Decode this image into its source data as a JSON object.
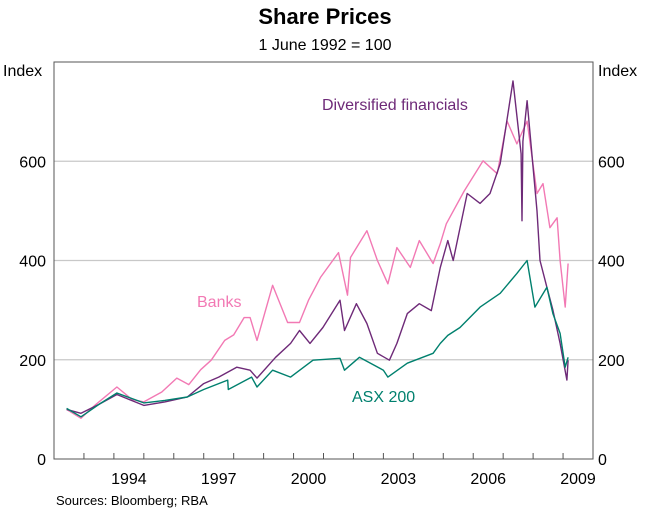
{
  "chart_data": {
    "type": "line",
    "title": "Share Prices",
    "subtitle": "1 June 1992 = 100",
    "ylabel_left": "Index",
    "ylabel_right": "Index",
    "ylim": [
      0,
      800
    ],
    "yticks": [
      0,
      200,
      400,
      600
    ],
    "xlim": [
      1992.0,
      2010.0
    ],
    "xtick_labels": [
      {
        "label": "1994",
        "year": 1994
      },
      {
        "label": "1997",
        "year": 1997
      },
      {
        "label": "2000",
        "year": 2000
      },
      {
        "label": "2003",
        "year": 2003
      },
      {
        "label": "2006",
        "year": 2006
      },
      {
        "label": "2009",
        "year": 2009
      }
    ],
    "grid": true,
    "source": "Sources: Bloomberg; RBA",
    "series": [
      {
        "name": "Banks",
        "color": "#f279b4",
        "points": [
          [
            1992.42,
            100
          ],
          [
            1992.9,
            82
          ],
          [
            1993.4,
            110
          ],
          [
            1994.1,
            145
          ],
          [
            1994.6,
            120
          ],
          [
            1995.0,
            115
          ],
          [
            1995.6,
            135
          ],
          [
            1996.1,
            163
          ],
          [
            1996.5,
            150
          ],
          [
            1996.9,
            180
          ],
          [
            1997.25,
            199
          ],
          [
            1997.7,
            239
          ],
          [
            1998.0,
            250
          ],
          [
            1998.35,
            285
          ],
          [
            1998.55,
            285
          ],
          [
            1998.78,
            239
          ],
          [
            1999.3,
            350
          ],
          [
            1999.8,
            275
          ],
          [
            2000.2,
            275
          ],
          [
            2000.5,
            320
          ],
          [
            2000.9,
            366
          ],
          [
            2001.5,
            416
          ],
          [
            2001.8,
            330
          ],
          [
            2001.9,
            406
          ],
          [
            2002.45,
            460
          ],
          [
            2002.8,
            400
          ],
          [
            2003.15,
            353
          ],
          [
            2003.45,
            426
          ],
          [
            2003.9,
            386
          ],
          [
            2004.2,
            440
          ],
          [
            2004.66,
            394
          ],
          [
            2004.9,
            434
          ],
          [
            2005.1,
            474
          ],
          [
            2005.7,
            540
          ],
          [
            2006.33,
            601
          ],
          [
            2006.8,
            575
          ],
          [
            2007.13,
            681
          ],
          [
            2007.46,
            635
          ],
          [
            2007.8,
            681
          ],
          [
            2008.13,
            535
          ],
          [
            2008.33,
            555
          ],
          [
            2008.56,
            466
          ],
          [
            2008.8,
            486
          ],
          [
            2008.9,
            400
          ],
          [
            2009.07,
            306
          ],
          [
            2009.17,
            394
          ]
        ]
      },
      {
        "name": "Diversified financials",
        "color": "#6e2a78",
        "points": [
          [
            1992.42,
            100
          ],
          [
            1992.9,
            92
          ],
          [
            1993.5,
            110
          ],
          [
            1994.1,
            130
          ],
          [
            1995.0,
            108
          ],
          [
            1995.7,
            115
          ],
          [
            1996.45,
            125
          ],
          [
            1997.0,
            152
          ],
          [
            1997.5,
            165
          ],
          [
            1998.1,
            185
          ],
          [
            1998.55,
            179
          ],
          [
            1998.78,
            163
          ],
          [
            1999.4,
            205
          ],
          [
            1999.9,
            233
          ],
          [
            2000.2,
            259
          ],
          [
            2000.55,
            233
          ],
          [
            2000.98,
            265
          ],
          [
            2001.55,
            320
          ],
          [
            2001.7,
            259
          ],
          [
            2002.1,
            313
          ],
          [
            2002.45,
            273
          ],
          [
            2002.8,
            213
          ],
          [
            2003.2,
            199
          ],
          [
            2003.45,
            233
          ],
          [
            2003.8,
            293
          ],
          [
            2004.2,
            313
          ],
          [
            2004.6,
            299
          ],
          [
            2004.9,
            386
          ],
          [
            2005.15,
            440
          ],
          [
            2005.33,
            400
          ],
          [
            2005.8,
            535
          ],
          [
            2006.23,
            515
          ],
          [
            2006.56,
            535
          ],
          [
            2006.9,
            595
          ],
          [
            2007.33,
            762
          ],
          [
            2007.6,
            615
          ],
          [
            2007.63,
            480
          ],
          [
            2007.66,
            640
          ],
          [
            2007.8,
            722
          ],
          [
            2008.13,
            500
          ],
          [
            2008.23,
            400
          ],
          [
            2008.46,
            346
          ],
          [
            2008.66,
            300
          ],
          [
            2008.9,
            233
          ],
          [
            2009.13,
            159
          ],
          [
            2009.17,
            199
          ]
        ]
      },
      {
        "name": "ASX 200",
        "color": "#00806e",
        "points": [
          [
            1992.42,
            102
          ],
          [
            1992.9,
            85
          ],
          [
            1993.5,
            110
          ],
          [
            1994.1,
            133
          ],
          [
            1995.0,
            113
          ],
          [
            1995.7,
            118
          ],
          [
            1996.45,
            125
          ],
          [
            1997.0,
            140
          ],
          [
            1997.8,
            159
          ],
          [
            1997.82,
            140
          ],
          [
            1998.6,
            165
          ],
          [
            1998.78,
            145
          ],
          [
            1999.3,
            179
          ],
          [
            1999.9,
            165
          ],
          [
            2000.65,
            199
          ],
          [
            2001.55,
            203
          ],
          [
            2001.7,
            179
          ],
          [
            2002.2,
            205
          ],
          [
            2003.0,
            179
          ],
          [
            2003.15,
            165
          ],
          [
            2003.8,
            193
          ],
          [
            2004.66,
            213
          ],
          [
            2004.9,
            233
          ],
          [
            2005.15,
            249
          ],
          [
            2005.56,
            265
          ],
          [
            2006.23,
            306
          ],
          [
            2006.9,
            334
          ],
          [
            2007.46,
            374
          ],
          [
            2007.8,
            400
          ],
          [
            2008.06,
            306
          ],
          [
            2008.46,
            346
          ],
          [
            2008.66,
            293
          ],
          [
            2008.9,
            253
          ],
          [
            2009.07,
            185
          ],
          [
            2009.17,
            205
          ]
        ]
      }
    ]
  }
}
